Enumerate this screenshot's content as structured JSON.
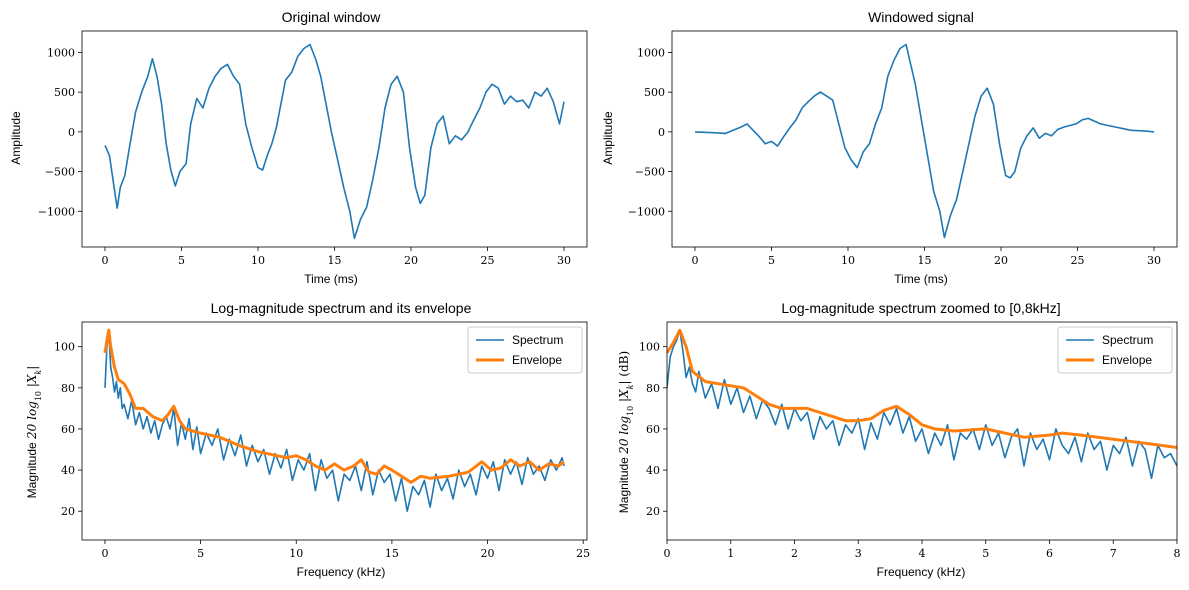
{
  "colors": {
    "spectrum": "#1f77b4",
    "envelope": "#ff7f0e",
    "signal": "#1f77b4"
  },
  "chart_data": [
    {
      "type": "line",
      "title": "Original window",
      "xlabel": "Time (ms)",
      "ylabel": "Amplitude",
      "xlim": [
        -1.5,
        31.5
      ],
      "ylim": [
        -1450,
        1270
      ],
      "xticks": [
        0,
        5,
        10,
        15,
        20,
        25,
        30
      ],
      "yticks": [
        -1000,
        -500,
        0,
        500,
        1000
      ],
      "ytick_labels": [
        "−1000",
        "−500",
        "0",
        "500",
        "1000"
      ],
      "series": [
        {
          "color": "#1f77b4",
          "x": [
            0,
            0.3,
            0.6,
            0.8,
            1.0,
            1.3,
            1.6,
            2.0,
            2.4,
            2.8,
            3.1,
            3.4,
            3.7,
            4.0,
            4.3,
            4.6,
            4.9,
            5.1,
            5.3,
            5.6,
            6.0,
            6.4,
            6.8,
            7.2,
            7.6,
            8.0,
            8.4,
            8.8,
            9.2,
            9.6,
            10.0,
            10.3,
            10.6,
            10.9,
            11.2,
            11.5,
            11.8,
            12.2,
            12.6,
            13.0,
            13.4,
            13.8,
            14.1,
            14.4,
            14.8,
            15.2,
            15.6,
            16.0,
            16.3,
            16.7,
            17.1,
            17.5,
            17.9,
            18.3,
            18.7,
            19.1,
            19.5,
            19.9,
            20.3,
            20.6,
            20.9,
            21.3,
            21.7,
            22.1,
            22.5,
            22.9,
            23.3,
            23.7,
            24.1,
            24.5,
            24.9,
            25.3,
            25.7,
            26.1,
            26.5,
            26.9,
            27.3,
            27.7,
            28.1,
            28.5,
            28.9,
            29.3,
            29.7,
            30.0
          ],
          "y": [
            -170,
            -300,
            -700,
            -960,
            -700,
            -550,
            -200,
            250,
            500,
            700,
            920,
            700,
            350,
            -150,
            -480,
            -680,
            -500,
            -450,
            -400,
            100,
            420,
            300,
            550,
            700,
            800,
            850,
            700,
            600,
            100,
            -200,
            -450,
            -480,
            -300,
            -150,
            50,
            350,
            650,
            750,
            950,
            1050,
            1100,
            900,
            700,
            400,
            0,
            -350,
            -700,
            -1000,
            -1340,
            -1100,
            -950,
            -600,
            -200,
            300,
            600,
            700,
            500,
            -200,
            -700,
            -900,
            -800,
            -200,
            100,
            200,
            -150,
            -50,
            -100,
            -10,
            150,
            300,
            500,
            600,
            550,
            350,
            450,
            380,
            400,
            300,
            500,
            450,
            550,
            380,
            100,
            380
          ]
        }
      ]
    },
    {
      "type": "line",
      "title": "Windowed signal",
      "xlabel": "Time (ms)",
      "ylabel": "Amplitude",
      "xlim": [
        -1.5,
        31.5
      ],
      "ylim": [
        -1450,
        1270
      ],
      "xticks": [
        0,
        5,
        10,
        15,
        20,
        25,
        30
      ],
      "yticks": [
        -1000,
        -500,
        0,
        500,
        1000
      ],
      "ytick_labels": [
        "−1000",
        "−500",
        "0",
        "500",
        "1000"
      ],
      "series": [
        {
          "color": "#1f77b4",
          "x": [
            0,
            1.0,
            2.0,
            2.5,
            3.0,
            3.4,
            3.8,
            4.2,
            4.6,
            5.0,
            5.4,
            5.8,
            6.2,
            6.6,
            7.0,
            7.4,
            7.8,
            8.2,
            8.6,
            9.0,
            9.4,
            9.8,
            10.2,
            10.6,
            11.0,
            11.4,
            11.8,
            12.2,
            12.6,
            13.0,
            13.4,
            13.8,
            14.1,
            14.4,
            14.8,
            15.2,
            15.6,
            16.0,
            16.3,
            16.7,
            17.1,
            17.5,
            17.9,
            18.3,
            18.7,
            19.1,
            19.5,
            19.9,
            20.3,
            20.6,
            20.9,
            21.3,
            21.7,
            22.1,
            22.5,
            22.9,
            23.3,
            23.7,
            24.1,
            24.5,
            24.9,
            25.3,
            25.7,
            26.5,
            27.5,
            28.5,
            29.5,
            30.0
          ],
          "y": [
            0,
            -10,
            -20,
            20,
            60,
            100,
            20,
            -60,
            -150,
            -120,
            -180,
            -60,
            50,
            150,
            300,
            380,
            450,
            500,
            450,
            400,
            100,
            -200,
            -350,
            -450,
            -250,
            -150,
            100,
            300,
            700,
            900,
            1050,
            1100,
            850,
            600,
            150,
            -300,
            -750,
            -1000,
            -1330,
            -1050,
            -850,
            -500,
            -150,
            200,
            450,
            550,
            350,
            -150,
            -550,
            -580,
            -500,
            -200,
            -50,
            50,
            -80,
            -20,
            -50,
            30,
            60,
            80,
            100,
            150,
            170,
            100,
            60,
            20,
            10,
            0
          ]
        }
      ]
    },
    {
      "type": "line",
      "title": "Log-magnitude spectrum and its envelope",
      "xlabel": "Frequency (kHz)",
      "ylabel": "Magnitude $20\\log_{10}|X_k|$",
      "ylabel_text": "Magnitude ",
      "ylabel_math": "20 log",
      "ylabel_sub": "10",
      "ylabel_math2": " |X",
      "ylabel_sub2": "k",
      "ylabel_math3": "|",
      "xlim": [
        -1.2,
        25.2
      ],
      "ylim": [
        6,
        112
      ],
      "xticks": [
        0,
        5,
        10,
        15,
        20,
        25
      ],
      "yticks": [
        20,
        40,
        60,
        80,
        100
      ],
      "legend": [
        "Spectrum",
        "Envelope"
      ],
      "legend_position": "top-right",
      "series": [
        {
          "name": "Spectrum",
          "color": "#1f77b4",
          "role": "spectrum",
          "x": [
            0,
            0.1,
            0.2,
            0.3,
            0.4,
            0.5,
            0.6,
            0.7,
            0.8,
            0.9,
            1.0,
            1.2,
            1.4,
            1.6,
            1.8,
            2.0,
            2.2,
            2.4,
            2.6,
            2.8,
            3.0,
            3.2,
            3.4,
            3.6,
            3.8,
            4.0,
            4.2,
            4.4,
            4.6,
            4.8,
            5.0,
            5.3,
            5.6,
            5.9,
            6.2,
            6.5,
            6.8,
            7.1,
            7.4,
            7.7,
            8.0,
            8.3,
            8.6,
            8.9,
            9.2,
            9.5,
            9.8,
            10.1,
            10.4,
            10.7,
            11.0,
            11.3,
            11.6,
            11.9,
            12.2,
            12.5,
            12.8,
            13.1,
            13.4,
            13.7,
            14.0,
            14.3,
            14.6,
            14.9,
            15.2,
            15.5,
            15.8,
            16.1,
            16.4,
            16.7,
            17.0,
            17.3,
            17.6,
            17.9,
            18.2,
            18.5,
            18.8,
            19.1,
            19.4,
            19.7,
            20.0,
            20.3,
            20.6,
            20.9,
            21.2,
            21.5,
            21.8,
            22.1,
            22.4,
            22.7,
            23.0,
            23.3,
            23.6,
            23.9,
            24.0
          ],
          "y": [
            80,
            100,
            107,
            90,
            85,
            78,
            83,
            75,
            80,
            70,
            72,
            65,
            74,
            62,
            68,
            60,
            66,
            58,
            64,
            55,
            62,
            66,
            60,
            70,
            52,
            63,
            55,
            65,
            50,
            61,
            48,
            58,
            52,
            60,
            45,
            55,
            47,
            57,
            42,
            52,
            44,
            50,
            38,
            48,
            41,
            50,
            35,
            45,
            40,
            48,
            30,
            45,
            36,
            40,
            25,
            38,
            35,
            42,
            30,
            44,
            28,
            40,
            34,
            38,
            25,
            36,
            20,
            32,
            28,
            35,
            22,
            38,
            30,
            36,
            26,
            40,
            32,
            38,
            28,
            42,
            36,
            44,
            30,
            45,
            38,
            44,
            33,
            46,
            38,
            42,
            35,
            45,
            40,
            46,
            42
          ]
        },
        {
          "name": "Envelope",
          "color": "#ff7f0e",
          "role": "envelope",
          "x": [
            0,
            0.1,
            0.2,
            0.3,
            0.5,
            0.7,
            1.0,
            1.3,
            1.6,
            2.0,
            2.5,
            3.0,
            3.3,
            3.6,
            3.9,
            4.2,
            5.0,
            6.0,
            7.0,
            8.0,
            9.0,
            9.5,
            10.0,
            10.5,
            11.0,
            11.5,
            12.0,
            12.5,
            13.0,
            13.4,
            13.8,
            14.2,
            14.6,
            15.0,
            15.5,
            16.0,
            16.5,
            17.0,
            18.0,
            19.0,
            19.7,
            20.2,
            20.7,
            21.2,
            21.7,
            22.2,
            22.7,
            23.2,
            23.7,
            24.0
          ],
          "y": [
            97,
            103,
            108,
            100,
            90,
            84,
            82,
            77,
            70,
            70,
            66,
            64,
            67,
            71,
            64,
            60,
            58,
            56,
            52,
            49,
            47,
            46,
            47,
            45,
            42,
            40,
            43,
            40,
            42,
            45,
            39,
            38,
            42,
            40,
            37,
            34,
            37,
            36,
            37,
            39,
            44,
            40,
            41,
            45,
            42,
            44,
            40,
            43,
            42,
            44
          ]
        }
      ]
    },
    {
      "type": "line",
      "title": "Log-magnitude spectrum zoomed to [0,8kHz]",
      "xlabel": "Frequency (kHz)",
      "ylabel": "Magnitude $20\\log_{10}|X_k|$ (dB)",
      "ylabel_text": "Magnitude ",
      "ylabel_math": "20 log",
      "ylabel_sub": "10",
      "ylabel_math2": " |X",
      "ylabel_sub2": "k",
      "ylabel_math3": "| (dB)",
      "xlim": [
        0,
        8
      ],
      "ylim": [
        6,
        112
      ],
      "xticks": [
        0,
        1,
        2,
        3,
        4,
        5,
        6,
        7,
        8
      ],
      "yticks": [
        20,
        40,
        60,
        80,
        100
      ],
      "legend": [
        "Spectrum",
        "Envelope"
      ],
      "legend_position": "top-right",
      "series": [
        {
          "name": "Spectrum",
          "color": "#1f77b4",
          "role": "spectrum",
          "x": [
            0,
            0.05,
            0.1,
            0.15,
            0.2,
            0.25,
            0.3,
            0.35,
            0.4,
            0.45,
            0.5,
            0.6,
            0.7,
            0.8,
            0.9,
            1.0,
            1.1,
            1.2,
            1.3,
            1.4,
            1.5,
            1.6,
            1.7,
            1.8,
            1.9,
            2.0,
            2.1,
            2.2,
            2.3,
            2.4,
            2.5,
            2.6,
            2.7,
            2.8,
            2.9,
            3.0,
            3.1,
            3.2,
            3.3,
            3.4,
            3.5,
            3.6,
            3.7,
            3.8,
            3.9,
            4.0,
            4.1,
            4.2,
            4.3,
            4.4,
            4.5,
            4.6,
            4.7,
            4.8,
            4.9,
            5.0,
            5.1,
            5.2,
            5.3,
            5.4,
            5.5,
            5.6,
            5.7,
            5.8,
            5.9,
            6.0,
            6.1,
            6.2,
            6.3,
            6.4,
            6.5,
            6.6,
            6.7,
            6.8,
            6.9,
            7.0,
            7.1,
            7.2,
            7.3,
            7.4,
            7.5,
            7.6,
            7.7,
            7.8,
            7.9,
            8.0
          ],
          "y": [
            80,
            95,
            100,
            103,
            108,
            98,
            85,
            90,
            82,
            78,
            88,
            75,
            82,
            70,
            84,
            72,
            80,
            68,
            76,
            65,
            74,
            70,
            62,
            72,
            60,
            70,
            64,
            68,
            55,
            66,
            60,
            64,
            52,
            62,
            58,
            65,
            50,
            63,
            55,
            68,
            62,
            70,
            58,
            66,
            54,
            60,
            48,
            58,
            52,
            62,
            45,
            58,
            55,
            60,
            50,
            62,
            52,
            58,
            46,
            56,
            60,
            42,
            58,
            50,
            55,
            45,
            60,
            52,
            48,
            56,
            44,
            58,
            50,
            54,
            40,
            52,
            48,
            56,
            42,
            54,
            50,
            36,
            52,
            46,
            48,
            42
          ]
        },
        {
          "name": "Envelope",
          "color": "#ff7f0e",
          "role": "envelope",
          "x": [
            0,
            0.1,
            0.2,
            0.3,
            0.4,
            0.6,
            0.8,
            1.0,
            1.2,
            1.4,
            1.6,
            1.8,
            2.0,
            2.2,
            2.4,
            2.6,
            2.8,
            3.0,
            3.2,
            3.4,
            3.6,
            3.8,
            4.0,
            4.2,
            4.5,
            5.0,
            5.3,
            5.6,
            6.0,
            6.2,
            6.5,
            7.0,
            7.5,
            8.0
          ],
          "y": [
            97,
            102,
            108,
            100,
            88,
            83,
            82,
            81,
            80,
            76,
            72,
            70,
            70,
            70,
            68,
            66,
            64,
            64,
            65,
            69,
            71,
            67,
            62,
            60,
            59,
            60,
            58,
            56,
            57,
            58,
            57,
            55,
            53,
            51
          ]
        }
      ]
    }
  ]
}
